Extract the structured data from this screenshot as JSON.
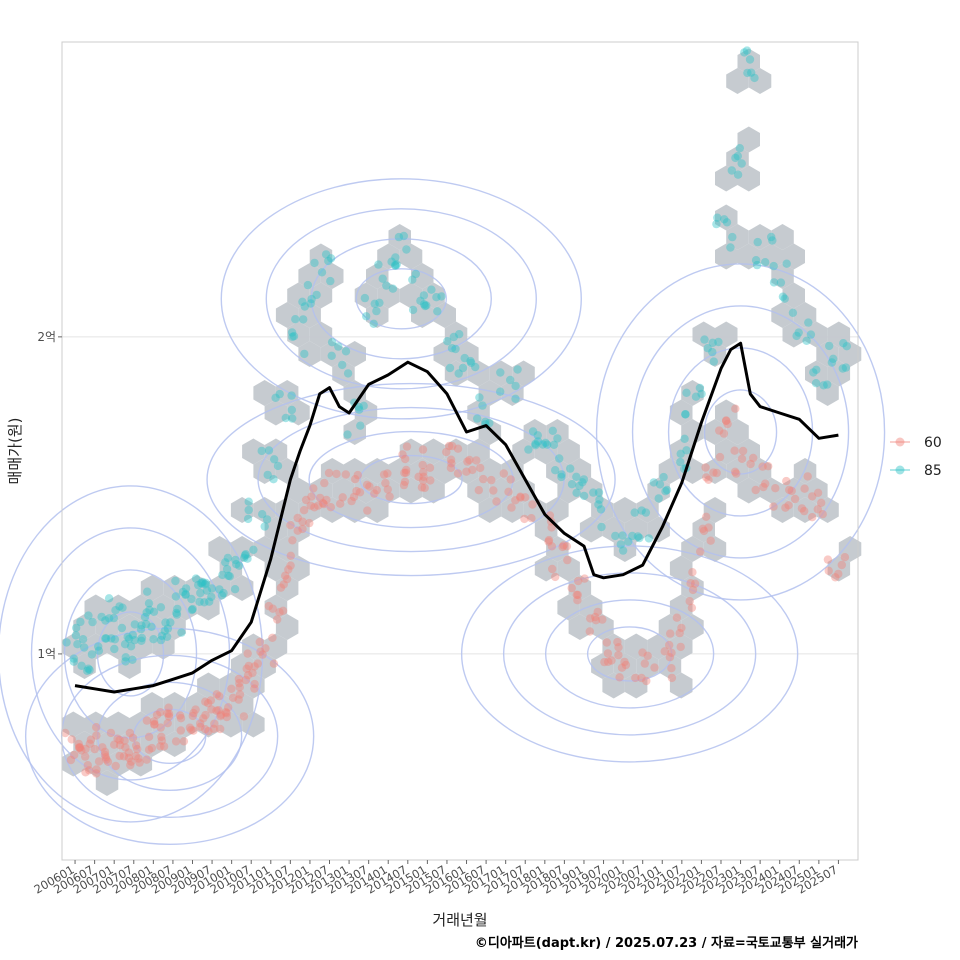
{
  "chart_data": {
    "type": "scatter",
    "xlabel": "거래년월",
    "ylabel": "매매가(원)",
    "credit": "©디아파트(dapt.kr) / 2025.07.23 / 자료=국토교통부 실거래가",
    "y_unit": "억 원",
    "ylim": [
      0.35,
      2.93
    ],
    "xlim": [
      "2005-09",
      "2026-01"
    ],
    "y_ticks": [
      {
        "value": 1,
        "label": "1억"
      },
      {
        "value": 2,
        "label": "2억"
      }
    ],
    "x_ticks": [
      "200601",
      "200607",
      "200701",
      "200707",
      "200801",
      "200807",
      "200901",
      "200907",
      "201001",
      "201007",
      "201101",
      "201107",
      "201201",
      "201207",
      "201301",
      "201307",
      "201401",
      "201407",
      "201501",
      "201507",
      "201601",
      "201607",
      "201701",
      "201707",
      "201801",
      "201807",
      "201901",
      "201907",
      "202001",
      "202007",
      "202101",
      "202107",
      "202201",
      "202207",
      "202301",
      "202307",
      "202401",
      "202407",
      "202501",
      "202507"
    ],
    "grid": true,
    "legend_position": "right",
    "layers": [
      "hexbin",
      "density-contour",
      "scatter",
      "moving-average-line"
    ],
    "colors": {
      "hex": "#c3c8cd",
      "contour": "#b3c1ef",
      "line": "#000000",
      "series_60": "#f08078",
      "series_85": "#2cc2c6",
      "grid": "#e4e4e4",
      "panel_border": "#cccccc"
    },
    "series": [
      {
        "name": "60",
        "color": "#f08078",
        "points": [
          [
            "2006-01",
            0.7
          ],
          [
            "2006-03",
            0.68
          ],
          [
            "2006-05",
            0.72
          ],
          [
            "2006-08",
            0.66
          ],
          [
            "2006-11",
            0.7
          ],
          [
            "2007-02",
            0.71
          ],
          [
            "2007-05",
            0.69
          ],
          [
            "2007-08",
            0.7
          ],
          [
            "2007-11",
            0.73
          ],
          [
            "2008-02",
            0.74
          ],
          [
            "2008-05",
            0.76
          ],
          [
            "2008-08",
            0.78
          ],
          [
            "2008-11",
            0.77
          ],
          [
            "2009-02",
            0.79
          ],
          [
            "2009-05",
            0.8
          ],
          [
            "2009-08",
            0.82
          ],
          [
            "2009-11",
            0.84
          ],
          [
            "2010-02",
            0.86
          ],
          [
            "2010-05",
            0.9
          ],
          [
            "2010-08",
            0.95
          ],
          [
            "2010-11",
            1.02
          ],
          [
            "2011-02",
            1.1
          ],
          [
            "2011-05",
            1.22
          ],
          [
            "2011-08",
            1.36
          ],
          [
            "2011-11",
            1.46
          ],
          [
            "2012-03",
            1.5
          ],
          [
            "2012-08",
            1.52
          ],
          [
            "2013-01",
            1.54
          ],
          [
            "2013-06",
            1.5
          ],
          [
            "2013-11",
            1.55
          ],
          [
            "2014-04",
            1.58
          ],
          [
            "2014-09",
            1.6
          ],
          [
            "2015-02",
            1.58
          ],
          [
            "2015-07",
            1.6
          ],
          [
            "2016-01",
            1.62
          ],
          [
            "2016-07",
            1.57
          ],
          [
            "2017-01",
            1.52
          ],
          [
            "2017-07",
            1.45
          ],
          [
            "2018-01",
            1.38
          ],
          [
            "2018-06",
            1.3
          ],
          [
            "2018-11",
            1.2
          ],
          [
            "2019-04",
            1.1
          ],
          [
            "2019-09",
            1.02
          ],
          [
            "2020-02",
            0.98
          ],
          [
            "2020-07",
            0.96
          ],
          [
            "2021-01",
            0.98
          ],
          [
            "2021-05",
            1.06
          ],
          [
            "2021-09",
            1.2
          ],
          [
            "2022-01",
            1.38
          ],
          [
            "2022-05",
            1.58
          ],
          [
            "2022-09",
            1.72
          ],
          [
            "2023-02",
            1.6
          ],
          [
            "2023-07",
            1.56
          ],
          [
            "2024-01",
            1.52
          ],
          [
            "2024-07",
            1.5
          ],
          [
            "2025-01",
            1.45
          ],
          [
            "2025-06",
            1.3
          ]
        ]
      },
      {
        "name": "85",
        "color": "#2cc2c6",
        "points": [
          [
            "2006-01",
            1.02
          ],
          [
            "2006-04",
            1.08
          ],
          [
            "2006-07",
            0.98
          ],
          [
            "2006-10",
            1.06
          ],
          [
            "2007-01",
            1.12
          ],
          [
            "2007-04",
            1.04
          ],
          [
            "2007-07",
            1.0
          ],
          [
            "2007-10",
            1.1
          ],
          [
            "2008-01",
            1.14
          ],
          [
            "2008-04",
            1.08
          ],
          [
            "2008-07",
            1.12
          ],
          [
            "2008-10",
            1.18
          ],
          [
            "2009-01",
            1.2
          ],
          [
            "2009-04",
            1.16
          ],
          [
            "2009-07",
            1.22
          ],
          [
            "2009-10",
            1.26
          ],
          [
            "2010-01",
            1.24
          ],
          [
            "2010-05",
            1.3
          ],
          [
            "2010-09",
            1.46
          ],
          [
            "2011-01",
            1.6
          ],
          [
            "2011-05",
            1.8
          ],
          [
            "2011-09",
            2.0
          ],
          [
            "2012-01",
            2.15
          ],
          [
            "2012-05",
            2.22
          ],
          [
            "2012-10",
            1.94
          ],
          [
            "2013-03",
            1.74
          ],
          [
            "2013-08",
            2.08
          ],
          [
            "2014-01",
            2.2
          ],
          [
            "2014-06",
            2.26
          ],
          [
            "2014-10",
            2.14
          ],
          [
            "2015-03",
            2.1
          ],
          [
            "2015-08",
            1.96
          ],
          [
            "2016-01",
            1.88
          ],
          [
            "2016-07",
            1.78
          ],
          [
            "2017-02",
            1.84
          ],
          [
            "2017-08",
            1.7
          ],
          [
            "2018-02",
            1.66
          ],
          [
            "2018-07",
            1.58
          ],
          [
            "2019-01",
            1.52
          ],
          [
            "2019-06",
            1.46
          ],
          [
            "2020-01",
            1.38
          ],
          [
            "2020-06",
            1.4
          ],
          [
            "2021-01",
            1.5
          ],
          [
            "2021-06",
            1.62
          ],
          [
            "2021-11",
            1.8
          ],
          [
            "2022-04",
            1.98
          ],
          [
            "2022-08",
            2.32
          ],
          [
            "2022-11",
            2.56
          ],
          [
            "2023-03",
            2.86
          ],
          [
            "2023-08",
            2.26
          ],
          [
            "2024-02",
            2.18
          ],
          [
            "2024-08",
            2.02
          ],
          [
            "2025-02",
            1.86
          ],
          [
            "2025-07",
            1.96
          ]
        ]
      }
    ],
    "trend_line": {
      "x": [
        "2006-01",
        "2006-07",
        "2007-01",
        "2007-07",
        "2008-01",
        "2008-07",
        "2009-01",
        "2009-07",
        "2010-01",
        "2010-07",
        "2011-01",
        "2011-07",
        "2011-10",
        "2012-01",
        "2012-04",
        "2012-07",
        "2012-10",
        "2013-01",
        "2013-07",
        "2014-01",
        "2014-07",
        "2015-01",
        "2015-07",
        "2016-01",
        "2016-07",
        "2017-01",
        "2017-07",
        "2018-01",
        "2018-07",
        "2019-01",
        "2019-04",
        "2019-07",
        "2020-01",
        "2020-07",
        "2021-01",
        "2021-07",
        "2022-01",
        "2022-07",
        "2022-10",
        "2023-01",
        "2023-04",
        "2023-07",
        "2024-01",
        "2024-07",
        "2025-01",
        "2025-07"
      ],
      "y": [
        0.9,
        0.89,
        0.88,
        0.89,
        0.9,
        0.92,
        0.94,
        0.98,
        1.01,
        1.1,
        1.3,
        1.55,
        1.64,
        1.72,
        1.82,
        1.84,
        1.78,
        1.76,
        1.85,
        1.88,
        1.92,
        1.89,
        1.82,
        1.7,
        1.72,
        1.66,
        1.55,
        1.44,
        1.38,
        1.34,
        1.25,
        1.24,
        1.25,
        1.28,
        1.4,
        1.54,
        1.73,
        1.9,
        1.96,
        1.98,
        1.82,
        1.78,
        1.76,
        1.74,
        1.68,
        1.69
      ]
    }
  }
}
